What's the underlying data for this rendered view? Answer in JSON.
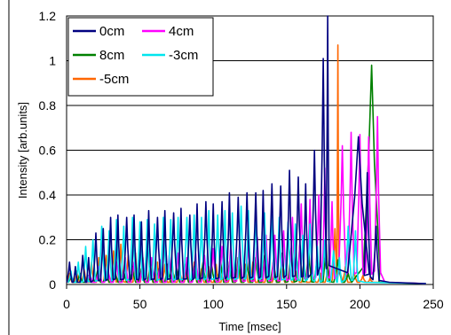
{
  "chart_data": {
    "type": "line",
    "title": "",
    "xlabel": "Time [msec]",
    "ylabel": "Intensity [arb.units]",
    "xlim": [
      0,
      250
    ],
    "ylim": [
      0,
      1.2
    ],
    "x_ticks": [
      "0",
      "50",
      "100",
      "150",
      "200",
      "250"
    ],
    "y_ticks": [
      "0",
      "0.2",
      "0.4",
      "0.6",
      "0.8",
      "1",
      "1.2"
    ],
    "grid": "horizontal",
    "legend_position": "top-left",
    "series": [
      {
        "name": "0cm",
        "color": "#000080",
        "peaks": [
          [
            2,
            0.1
          ],
          [
            6,
            0.08
          ],
          [
            11,
            0.13
          ],
          [
            15,
            0.12
          ],
          [
            20,
            0.23
          ],
          [
            25,
            0.25
          ],
          [
            30,
            0.3
          ],
          [
            35,
            0.31
          ],
          [
            41,
            0.3
          ],
          [
            46,
            0.31
          ],
          [
            51,
            0.28
          ],
          [
            56,
            0.33
          ],
          [
            62,
            0.3
          ],
          [
            67,
            0.33
          ],
          [
            73,
            0.32
          ],
          [
            78,
            0.34
          ],
          [
            84,
            0.31
          ],
          [
            89,
            0.36
          ],
          [
            95,
            0.37
          ],
          [
            100,
            0.36
          ],
          [
            106,
            0.37
          ],
          [
            111,
            0.41
          ],
          [
            117,
            0.39
          ],
          [
            123,
            0.41
          ],
          [
            129,
            0.41
          ],
          [
            134,
            0.42
          ],
          [
            140,
            0.45
          ],
          [
            146,
            0.44
          ],
          [
            152,
            0.51
          ],
          [
            158,
            0.48
          ],
          [
            163,
            0.45
          ],
          [
            169,
            0.6
          ],
          [
            175,
            1.01
          ],
          [
            178,
            1.2
          ],
          [
            199,
            0.66
          ],
          [
            205,
            0.5
          ],
          [
            211,
            0.26
          ]
        ],
        "end": 220
      },
      {
        "name": "4cm",
        "color": "#ff00ff",
        "peaks": [
          [
            16,
            0.06
          ],
          [
            22,
            0.08
          ],
          [
            28,
            0.09
          ],
          [
            34,
            0.1
          ],
          [
            40,
            0.12
          ],
          [
            46,
            0.1
          ],
          [
            52,
            0.11
          ],
          [
            58,
            0.12
          ],
          [
            64,
            0.11
          ],
          [
            70,
            0.13
          ],
          [
            76,
            0.14
          ],
          [
            82,
            0.12
          ],
          [
            88,
            0.14
          ],
          [
            94,
            0.13
          ],
          [
            100,
            0.16
          ],
          [
            106,
            0.17
          ],
          [
            112,
            0.18
          ],
          [
            118,
            0.19
          ],
          [
            124,
            0.2
          ],
          [
            130,
            0.21
          ],
          [
            136,
            0.22
          ],
          [
            142,
            0.22
          ],
          [
            148,
            0.24
          ],
          [
            154,
            0.3
          ],
          [
            160,
            0.36
          ],
          [
            166,
            0.38
          ],
          [
            172,
            0.4
          ],
          [
            176,
            0.52
          ],
          [
            181,
            0.37
          ],
          [
            188,
            0.62
          ],
          [
            194,
            0.68
          ],
          [
            200,
            0.67
          ],
          [
            206,
            0.66
          ],
          [
            212,
            0.75
          ]
        ],
        "end": 217
      },
      {
        "name": "8cm",
        "color": "#008000",
        "peaks": [
          [
            3,
            0.04
          ],
          [
            9,
            0.05
          ],
          [
            15,
            0.04
          ],
          [
            21,
            0.06
          ],
          [
            27,
            0.05
          ],
          [
            33,
            0.07
          ],
          [
            39,
            0.06
          ],
          [
            45,
            0.08
          ],
          [
            51,
            0.07
          ],
          [
            57,
            0.08
          ],
          [
            63,
            0.07
          ],
          [
            69,
            0.09
          ],
          [
            75,
            0.08
          ],
          [
            81,
            0.09
          ],
          [
            87,
            0.08
          ],
          [
            93,
            0.1
          ],
          [
            99,
            0.09
          ],
          [
            105,
            0.11
          ],
          [
            111,
            0.1
          ],
          [
            117,
            0.12
          ],
          [
            123,
            0.11
          ],
          [
            129,
            0.12
          ],
          [
            135,
            0.13
          ],
          [
            141,
            0.11
          ],
          [
            147,
            0.14
          ],
          [
            153,
            0.16
          ],
          [
            159,
            0.18
          ],
          [
            165,
            0.16
          ],
          [
            171,
            0.14
          ],
          [
            177,
            0.18
          ],
          [
            185,
            0.11
          ],
          [
            192,
            0.05
          ],
          [
            208,
            0.98
          ]
        ],
        "end": 213
      },
      {
        "name": "-3cm",
        "color": "#00e5ee",
        "peaks": [
          [
            3,
            0.06
          ],
          [
            8,
            0.1
          ],
          [
            13,
            0.17
          ],
          [
            18,
            0.2
          ],
          [
            24,
            0.26
          ],
          [
            29,
            0.24
          ],
          [
            34,
            0.29
          ],
          [
            39,
            0.26
          ],
          [
            45,
            0.3
          ],
          [
            50,
            0.28
          ],
          [
            55,
            0.29
          ],
          [
            60,
            0.27
          ],
          [
            66,
            0.3
          ],
          [
            71,
            0.29
          ],
          [
            76,
            0.3
          ],
          [
            82,
            0.3
          ],
          [
            87,
            0.31
          ],
          [
            92,
            0.3
          ],
          [
            97,
            0.33
          ],
          [
            103,
            0.31
          ],
          [
            108,
            0.33
          ],
          [
            113,
            0.32
          ],
          [
            119,
            0.35
          ],
          [
            124,
            0.33
          ],
          [
            129,
            0.34
          ],
          [
            135,
            0.32
          ],
          [
            140,
            0.31
          ],
          [
            145,
            0.3
          ],
          [
            151,
            0.28
          ],
          [
            156,
            0.27
          ],
          [
            161,
            0.22
          ],
          [
            166,
            0.27
          ],
          [
            171,
            0.17
          ],
          [
            176,
            0.2
          ],
          [
            182,
            0.15
          ],
          [
            186,
            0.12
          ],
          [
            192,
            0.26
          ],
          [
            197,
            0.24
          ]
        ],
        "end": 203
      },
      {
        "name": "-5cm",
        "color": "#ff6600",
        "peaks": [
          [
            2,
            0.05
          ],
          [
            7,
            0.06
          ],
          [
            12,
            0.07
          ],
          [
            17,
            0.1
          ],
          [
            22,
            0.12
          ],
          [
            27,
            0.13
          ],
          [
            32,
            0.15
          ],
          [
            37,
            0.18
          ],
          [
            42,
            0.13
          ],
          [
            47,
            0.14
          ],
          [
            52,
            0.12
          ],
          [
            57,
            0.11
          ],
          [
            62,
            0.1
          ],
          [
            67,
            0.09
          ],
          [
            72,
            0.1
          ],
          [
            77,
            0.08
          ],
          [
            82,
            0.09
          ],
          [
            87,
            0.1
          ],
          [
            92,
            0.07
          ],
          [
            97,
            0.08
          ],
          [
            102,
            0.09
          ],
          [
            107,
            0.1
          ],
          [
            112,
            0.06
          ],
          [
            117,
            0.08
          ],
          [
            122,
            0.09
          ],
          [
            127,
            0.1
          ],
          [
            132,
            0.07
          ],
          [
            137,
            0.09
          ],
          [
            142,
            0.06
          ],
          [
            147,
            0.07
          ],
          [
            152,
            0.05
          ],
          [
            157,
            0.06
          ],
          [
            162,
            0.07
          ],
          [
            168,
            0.04
          ],
          [
            173,
            0.05
          ],
          [
            178,
            0.07
          ],
          [
            183,
            0.25
          ],
          [
            185,
            1.07
          ],
          [
            190,
            0.08
          ],
          [
            196,
            0.06
          ],
          [
            202,
            0.04
          ],
          [
            207,
            0.03
          ]
        ],
        "end": 212
      }
    ]
  }
}
